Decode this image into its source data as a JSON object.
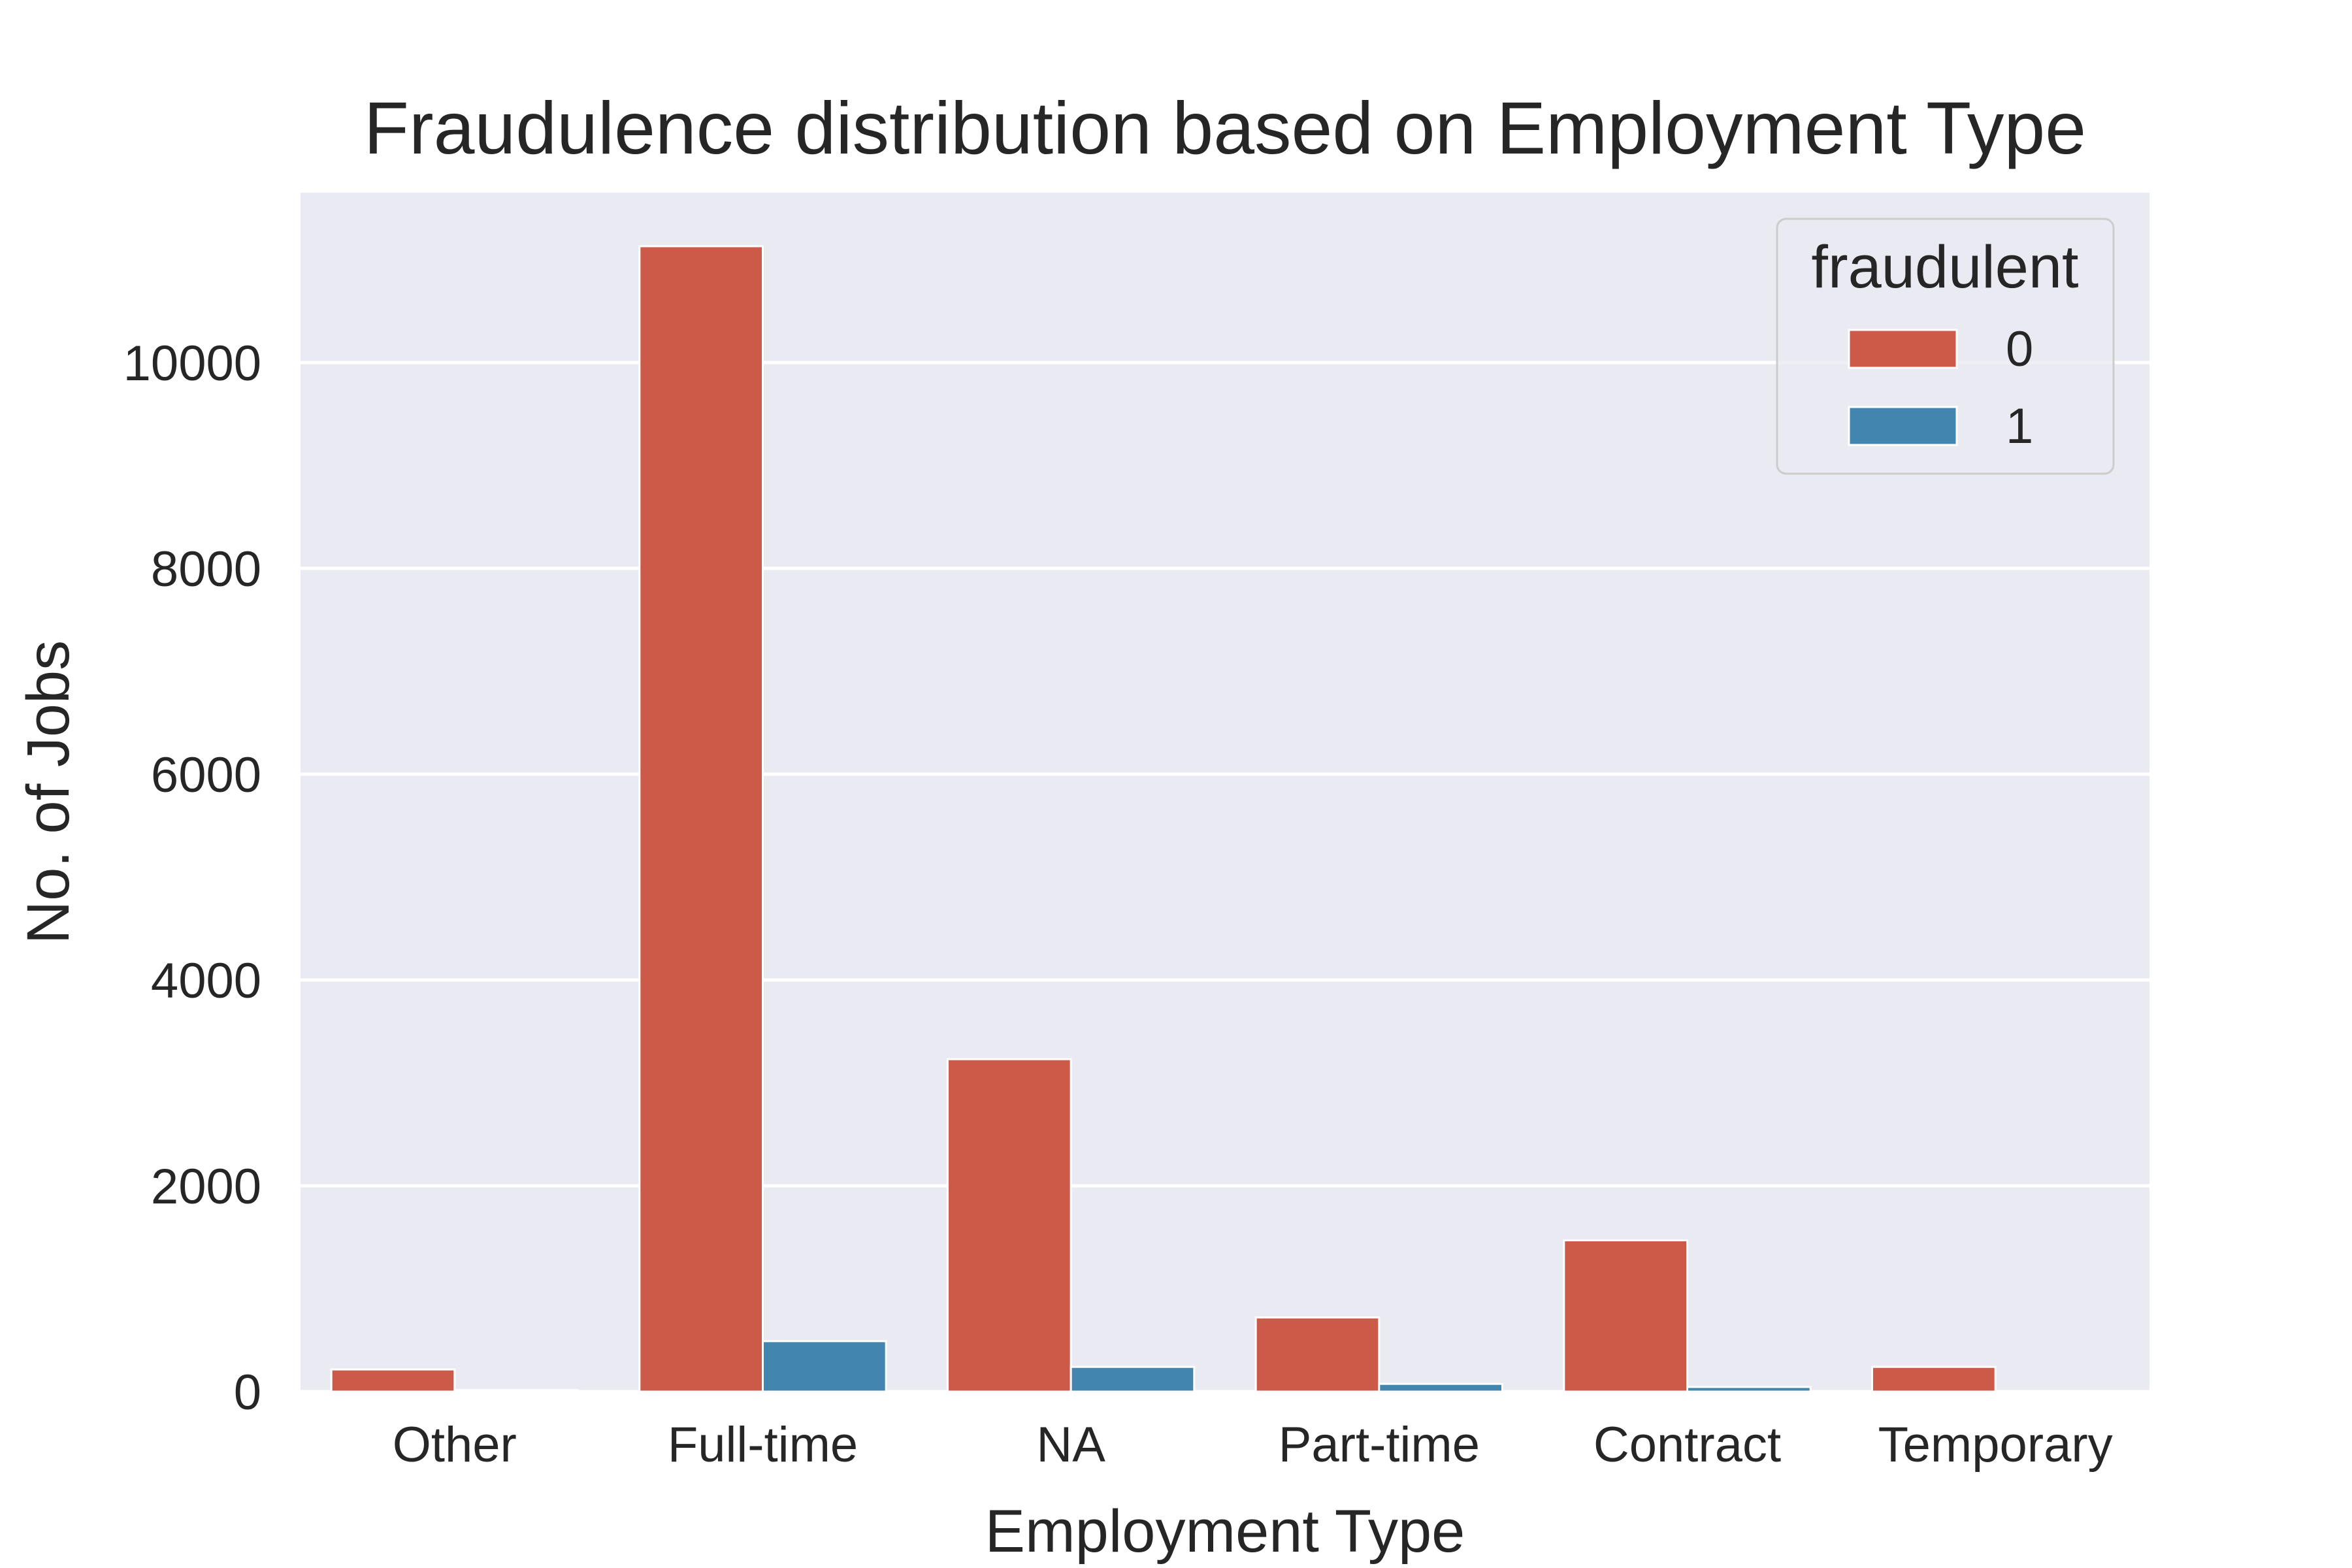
{
  "chart_data": {
    "type": "bar",
    "title": "Fraudulence distribution based on Employment Type",
    "xlabel": "Employment Type",
    "ylabel": "No. of Jobs",
    "categories": [
      "Other",
      "Full-time",
      "NA",
      "Part-time",
      "Contract",
      "Temporary"
    ],
    "series": [
      {
        "name": "0",
        "color": "#cc5a48",
        "values": [
          215,
          11130,
          3230,
          720,
          1470,
          240
        ]
      },
      {
        "name": "1",
        "color": "#4286b0",
        "values": [
          15,
          490,
          240,
          75,
          45,
          0
        ]
      }
    ],
    "ylim": [
      0,
      11650
    ],
    "yticks": [
      0,
      2000,
      4000,
      6000,
      8000,
      10000
    ],
    "grid": true,
    "background": "#eaeaf2",
    "legend": {
      "title": "fraudulent",
      "placement": "top-right"
    }
  }
}
